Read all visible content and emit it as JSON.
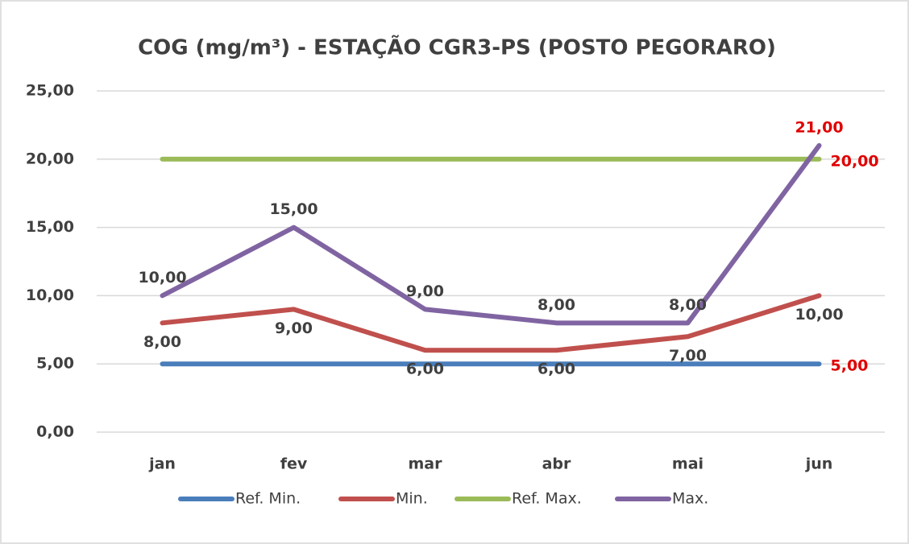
{
  "chart_data": {
    "type": "line",
    "title": "COG (mg/m³) - ESTAÇÃO CGR3-PS (POSTO PEGORARO)",
    "categories": [
      "jan",
      "fev",
      "mar",
      "abr",
      "mai",
      "jun"
    ],
    "ylim": [
      0,
      25
    ],
    "yticks": [
      {
        "value": 0,
        "label": "0,00"
      },
      {
        "value": 5,
        "label": "5,00"
      },
      {
        "value": 10,
        "label": "10,00"
      },
      {
        "value": 15,
        "label": "15,00"
      },
      {
        "value": 20,
        "label": "20,00"
      },
      {
        "value": 25,
        "label": "25,00"
      }
    ],
    "grid": true,
    "legend": "bottom",
    "series": [
      {
        "name": "Ref. Min.",
        "color": "#4a7ebb",
        "values": [
          5,
          5,
          5,
          5,
          5,
          5
        ],
        "value_labels": [
          null,
          null,
          null,
          null,
          null,
          "5,00"
        ],
        "label_colors": [
          null,
          null,
          null,
          null,
          null,
          "#e00000"
        ],
        "label_position": "right"
      },
      {
        "name": "Min.",
        "color": "#c0504d",
        "values": [
          8,
          9,
          6,
          6,
          7,
          10
        ],
        "value_labels": [
          "8,00",
          "9,00",
          "6,00",
          "6,00",
          "7,00",
          "10,00"
        ],
        "label_colors": [
          "#404040",
          "#404040",
          "#404040",
          "#404040",
          "#404040",
          "#404040"
        ],
        "label_position": "below"
      },
      {
        "name": "Ref. Max.",
        "color": "#9bbb59",
        "values": [
          20,
          20,
          20,
          20,
          20,
          20
        ],
        "value_labels": [
          null,
          null,
          null,
          null,
          null,
          "20,00"
        ],
        "label_colors": [
          null,
          null,
          null,
          null,
          null,
          "#e00000"
        ],
        "label_position": "right"
      },
      {
        "name": "Max.",
        "color": "#8064a2",
        "values": [
          10,
          15,
          9,
          8,
          8,
          21
        ],
        "value_labels": [
          "10,00",
          "15,00",
          "9,00",
          "8,00",
          "8,00",
          "21,00"
        ],
        "label_colors": [
          "#404040",
          "#404040",
          "#404040",
          "#404040",
          "#404040",
          "#e00000"
        ],
        "label_position": "above"
      }
    ]
  }
}
